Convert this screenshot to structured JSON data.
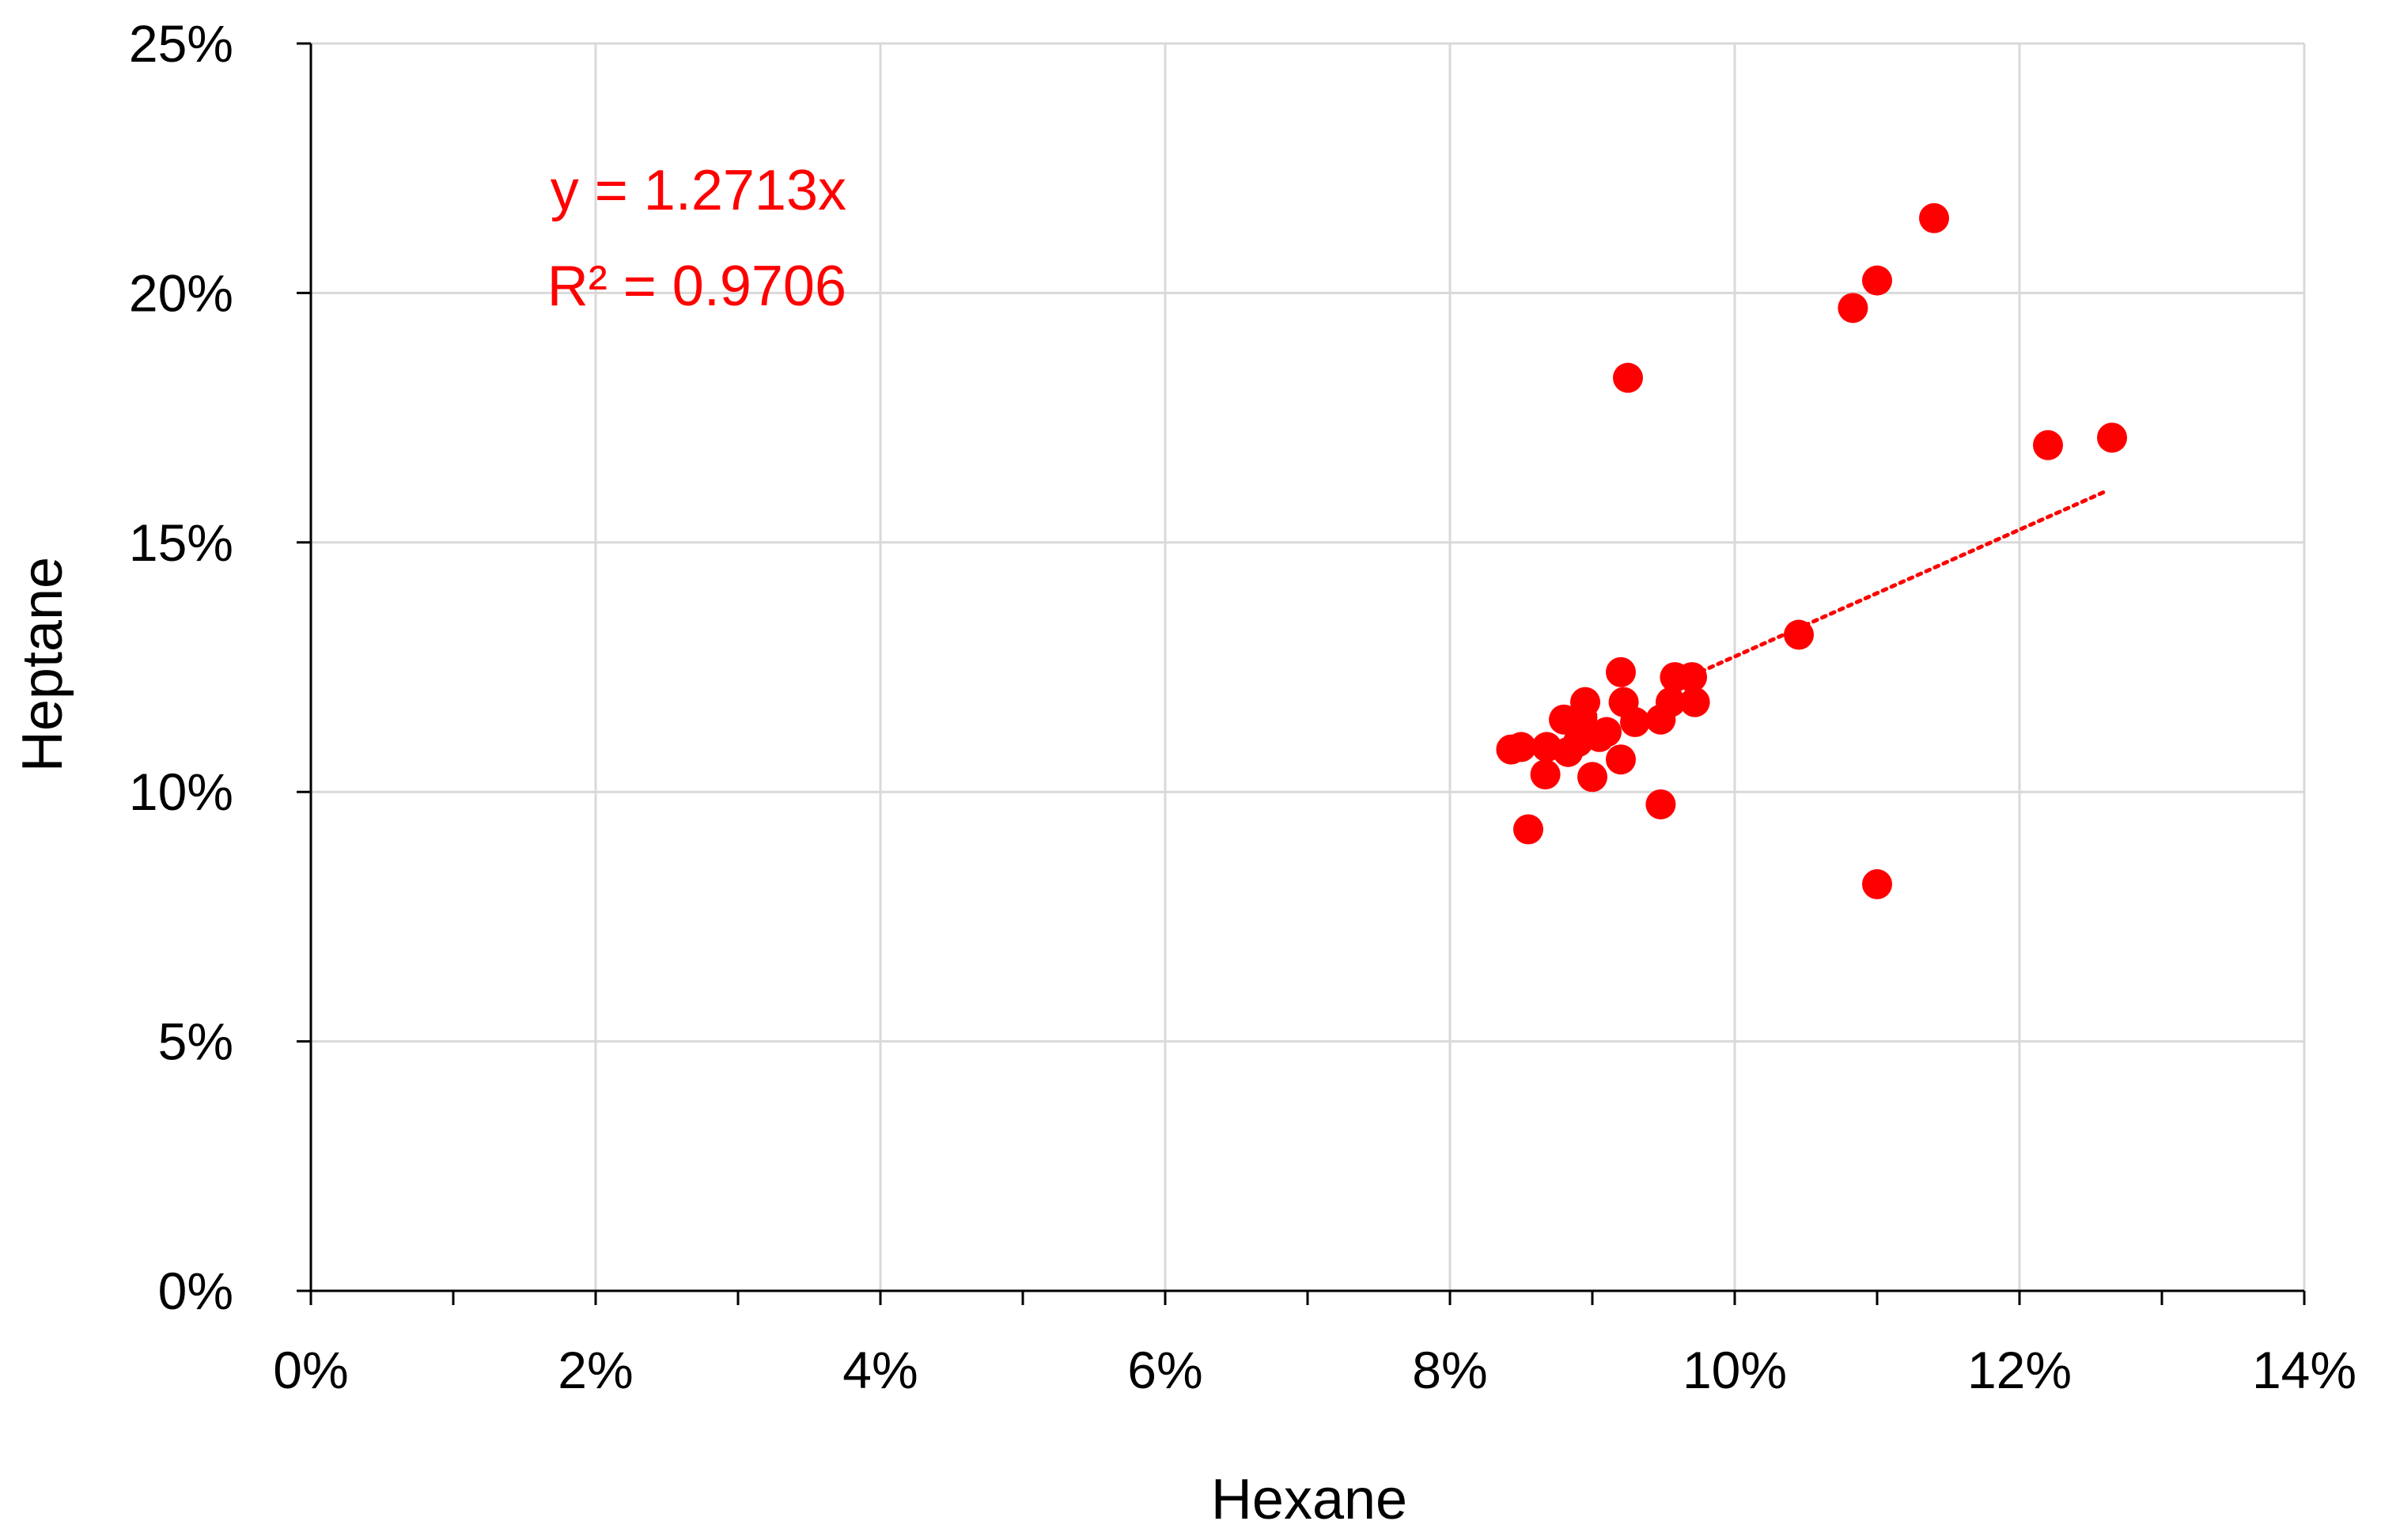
{
  "colors": {
    "series": "#ff0000",
    "grid": "#d9d9d9",
    "axis": "#000000",
    "background": "#ffffff"
  },
  "chart_data": {
    "type": "scatter",
    "title": "",
    "xlabel": "Hexane",
    "ylabel": "Heptane",
    "xlim": [
      0,
      0.14
    ],
    "ylim": [
      0,
      0.25
    ],
    "x_ticks": [
      0,
      0.02,
      0.04,
      0.06,
      0.08,
      0.1,
      0.12,
      0.14
    ],
    "x_tick_labels": [
      "0%",
      "2%",
      "4%",
      "6%",
      "8%",
      "10%",
      "12%",
      "14%"
    ],
    "y_ticks": [
      0,
      0.05,
      0.1,
      0.15,
      0.2,
      0.25
    ],
    "y_tick_labels": [
      "0%",
      "5%",
      "10%",
      "15%",
      "20%",
      "25%"
    ],
    "grid": true,
    "legend": "none",
    "series": [
      {
        "marker": "circle",
        "color": "#ff0000",
        "points": [
          [
            0.0843,
            0.1085
          ],
          [
            0.085,
            0.109
          ],
          [
            0.0855,
            0.0925
          ],
          [
            0.0867,
            0.1035
          ],
          [
            0.0868,
            0.109
          ],
          [
            0.088,
            0.1145
          ],
          [
            0.0883,
            0.108
          ],
          [
            0.089,
            0.11
          ],
          [
            0.0893,
            0.115
          ],
          [
            0.0895,
            0.118
          ],
          [
            0.09,
            0.103
          ],
          [
            0.0905,
            0.111
          ],
          [
            0.091,
            0.112
          ],
          [
            0.092,
            0.124
          ],
          [
            0.092,
            0.1065
          ],
          [
            0.0922,
            0.118
          ],
          [
            0.0925,
            0.183
          ],
          [
            0.093,
            0.114
          ],
          [
            0.0948,
            0.0975
          ],
          [
            0.0948,
            0.1145
          ],
          [
            0.0955,
            0.118
          ],
          [
            0.0958,
            0.123
          ],
          [
            0.097,
            0.123
          ],
          [
            0.0972,
            0.118
          ],
          [
            0.1045,
            0.1315
          ],
          [
            0.1083,
            0.197
          ],
          [
            0.11,
            0.2025
          ],
          [
            0.11,
            0.0815
          ],
          [
            0.114,
            0.215
          ],
          [
            0.122,
            0.1695
          ],
          [
            0.1265,
            0.171
          ]
        ]
      }
    ],
    "trendline": {
      "style": "dotted",
      "color": "#ff0000",
      "slope": 1.2713,
      "intercept": 0,
      "x_range": [
        0.097,
        0.1262
      ],
      "equation": "y = 1.2713x",
      "r_squared": "R² = 0.9706"
    }
  }
}
